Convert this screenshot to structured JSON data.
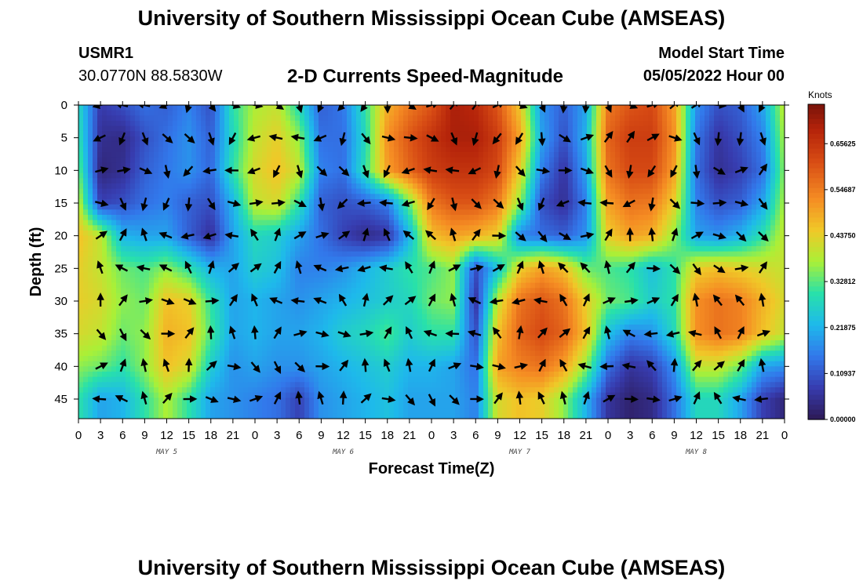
{
  "header": {
    "title": "University of Southern Mississippi Ocean Cube (AMSEAS)",
    "station_id": "USMR1",
    "station_location": "30.0770N  88.5830W",
    "plot_title": "2-D Currents Speed-Magnitude",
    "model_start_label": "Model Start Time",
    "model_start_value": "05/05/2022 Hour 00"
  },
  "footer": {
    "title": "University of Southern Mississippi Ocean Cube (AMSEAS)"
  },
  "chart_data": {
    "type": "heatmap",
    "title": "2-D Currents Speed-Magnitude",
    "xlabel": "Forecast Time(Z)",
    "ylabel": "Depth (ft)",
    "x_ticks": [
      "0",
      "3",
      "6",
      "9",
      "12",
      "15",
      "18",
      "21",
      "0",
      "3",
      "6",
      "9",
      "12",
      "15",
      "18",
      "21",
      "0",
      "3",
      "6",
      "9",
      "12",
      "15",
      "18",
      "21",
      "0",
      "3",
      "6",
      "9",
      "12",
      "15",
      "18",
      "21",
      "0"
    ],
    "x_hours_range": [
      0,
      96
    ],
    "day_labels": [
      {
        "label": "MAY 5",
        "hour": 12
      },
      {
        "label": "MAY 6",
        "hour": 36
      },
      {
        "label": "MAY 7",
        "hour": 60
      },
      {
        "label": "MAY 8",
        "hour": 84
      }
    ],
    "y_ticks": [
      0,
      5,
      10,
      15,
      20,
      25,
      30,
      35,
      40,
      45
    ],
    "ylim": [
      0,
      48
    ],
    "y_inverted": true,
    "colorbar": {
      "unit": "Knots",
      "range": [
        0,
        0.75
      ],
      "ticks": [
        "0.65625",
        "0.54687",
        "0.43750",
        "0.32812",
        "0.21875",
        "0.10937",
        "0.00000"
      ],
      "tick_values": [
        0.65625,
        0.546875,
        0.4375,
        0.328125,
        0.21875,
        0.109375,
        0.0
      ]
    },
    "speed_layers": {
      "hours": [
        0,
        3,
        6,
        9,
        12,
        15,
        18,
        21,
        24,
        27,
        30,
        33,
        36,
        39,
        42,
        45,
        48,
        51,
        54,
        57,
        60,
        63,
        66,
        69,
        72,
        75,
        78,
        81,
        84,
        87,
        90,
        93,
        96
      ],
      "depths_ft": [
        0,
        5,
        10,
        15,
        20,
        25,
        30,
        35,
        40,
        45
      ],
      "values": [
        [
          0.28,
          0.07,
          0.1,
          0.14,
          0.12,
          0.16,
          0.1,
          0.3,
          0.38,
          0.4,
          0.28,
          0.12,
          0.15,
          0.3,
          0.48,
          0.55,
          0.6,
          0.7,
          0.68,
          0.6,
          0.45,
          0.18,
          0.12,
          0.2,
          0.55,
          0.6,
          0.62,
          0.5,
          0.18,
          0.1,
          0.12,
          0.2,
          0.4
        ],
        [
          0.3,
          0.05,
          0.04,
          0.1,
          0.14,
          0.18,
          0.12,
          0.28,
          0.4,
          0.44,
          0.36,
          0.14,
          0.14,
          0.28,
          0.52,
          0.6,
          0.66,
          0.7,
          0.7,
          0.64,
          0.5,
          0.2,
          0.1,
          0.22,
          0.58,
          0.64,
          0.64,
          0.52,
          0.15,
          0.06,
          0.1,
          0.16,
          0.38
        ],
        [
          0.34,
          0.03,
          0.05,
          0.12,
          0.15,
          0.18,
          0.13,
          0.3,
          0.42,
          0.46,
          0.4,
          0.16,
          0.14,
          0.3,
          0.5,
          0.58,
          0.64,
          0.66,
          0.66,
          0.62,
          0.44,
          0.16,
          0.06,
          0.2,
          0.56,
          0.62,
          0.62,
          0.5,
          0.14,
          0.05,
          0.08,
          0.14,
          0.36
        ],
        [
          0.4,
          0.08,
          0.1,
          0.14,
          0.16,
          0.12,
          0.1,
          0.22,
          0.4,
          0.42,
          0.3,
          0.12,
          0.1,
          0.12,
          0.16,
          0.34,
          0.55,
          0.6,
          0.6,
          0.55,
          0.36,
          0.1,
          0.05,
          0.16,
          0.5,
          0.56,
          0.55,
          0.44,
          0.16,
          0.1,
          0.12,
          0.2,
          0.38
        ],
        [
          0.46,
          0.4,
          0.22,
          0.2,
          0.2,
          0.12,
          0.05,
          0.2,
          0.28,
          0.26,
          0.2,
          0.14,
          0.08,
          0.04,
          0.06,
          0.22,
          0.46,
          0.5,
          0.48,
          0.44,
          0.16,
          0.14,
          0.12,
          0.18,
          0.44,
          0.5,
          0.48,
          0.36,
          0.2,
          0.18,
          0.22,
          0.3,
          0.4
        ],
        [
          0.44,
          0.4,
          0.34,
          0.32,
          0.36,
          0.3,
          0.22,
          0.2,
          0.26,
          0.24,
          0.16,
          0.16,
          0.18,
          0.22,
          0.26,
          0.3,
          0.32,
          0.36,
          0.1,
          0.24,
          0.44,
          0.5,
          0.46,
          0.34,
          0.32,
          0.3,
          0.24,
          0.3,
          0.44,
          0.46,
          0.44,
          0.42,
          0.4
        ],
        [
          0.44,
          0.42,
          0.36,
          0.34,
          0.46,
          0.44,
          0.3,
          0.2,
          0.22,
          0.2,
          0.18,
          0.2,
          0.22,
          0.24,
          0.26,
          0.28,
          0.34,
          0.36,
          0.06,
          0.4,
          0.56,
          0.6,
          0.56,
          0.44,
          0.34,
          0.32,
          0.26,
          0.3,
          0.52,
          0.56,
          0.54,
          0.48,
          0.42
        ],
        [
          0.42,
          0.4,
          0.34,
          0.36,
          0.48,
          0.46,
          0.32,
          0.2,
          0.22,
          0.2,
          0.2,
          0.22,
          0.26,
          0.28,
          0.32,
          0.26,
          0.3,
          0.3,
          0.1,
          0.46,
          0.58,
          0.62,
          0.58,
          0.46,
          0.24,
          0.16,
          0.18,
          0.28,
          0.52,
          0.56,
          0.54,
          0.46,
          0.4
        ],
        [
          0.36,
          0.34,
          0.3,
          0.36,
          0.46,
          0.42,
          0.26,
          0.18,
          0.2,
          0.18,
          0.18,
          0.2,
          0.22,
          0.24,
          0.26,
          0.22,
          0.22,
          0.2,
          0.14,
          0.5,
          0.54,
          0.56,
          0.5,
          0.36,
          0.14,
          0.06,
          0.08,
          0.18,
          0.4,
          0.4,
          0.34,
          0.2,
          0.18
        ],
        [
          0.3,
          0.2,
          0.22,
          0.3,
          0.38,
          0.3,
          0.2,
          0.18,
          0.16,
          0.14,
          0.08,
          0.18,
          0.2,
          0.22,
          0.24,
          0.2,
          0.2,
          0.2,
          0.16,
          0.42,
          0.46,
          0.44,
          0.36,
          0.22,
          0.06,
          0.02,
          0.04,
          0.14,
          0.28,
          0.28,
          0.2,
          0.08,
          0.03
        ]
      ]
    }
  }
}
